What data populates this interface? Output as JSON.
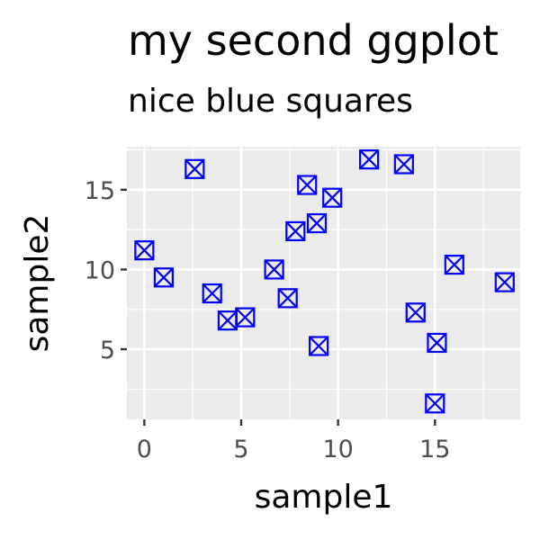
{
  "chart_data": {
    "type": "scatter",
    "title": "my second ggplot",
    "subtitle": "nice blue squares",
    "xlabel": "sample1",
    "ylabel": "sample2",
    "xlim": [
      -0.9,
      19.4
    ],
    "ylim": [
      0.6,
      17.7
    ],
    "x_ticks": [
      0,
      5,
      10,
      15
    ],
    "y_ticks": [
      5,
      10,
      15
    ],
    "x_tick_labels": [
      "0",
      "5",
      "10",
      "15"
    ],
    "y_tick_labels": [
      "5",
      "10",
      "15"
    ],
    "grid": true,
    "legend": "none",
    "marker": "square-with-cross",
    "marker_color": "#0000ff",
    "panel_color": "#ebebeb",
    "grid_color": "#ffffff",
    "points": [
      {
        "x": 0.0,
        "y": 11.2
      },
      {
        "x": 1.0,
        "y": 9.5
      },
      {
        "x": 2.6,
        "y": 16.3
      },
      {
        "x": 3.5,
        "y": 8.5
      },
      {
        "x": 4.3,
        "y": 6.8
      },
      {
        "x": 5.2,
        "y": 7.0
      },
      {
        "x": 6.7,
        "y": 10.0
      },
      {
        "x": 7.4,
        "y": 8.2
      },
      {
        "x": 7.8,
        "y": 12.4
      },
      {
        "x": 8.4,
        "y": 15.3
      },
      {
        "x": 8.9,
        "y": 12.9
      },
      {
        "x": 9.0,
        "y": 5.2
      },
      {
        "x": 9.7,
        "y": 14.5
      },
      {
        "x": 11.6,
        "y": 16.9
      },
      {
        "x": 13.4,
        "y": 16.6
      },
      {
        "x": 14.0,
        "y": 7.3
      },
      {
        "x": 15.1,
        "y": 5.4
      },
      {
        "x": 15.0,
        "y": 1.6
      },
      {
        "x": 16.0,
        "y": 10.3
      },
      {
        "x": 18.6,
        "y": 9.2
      }
    ]
  }
}
